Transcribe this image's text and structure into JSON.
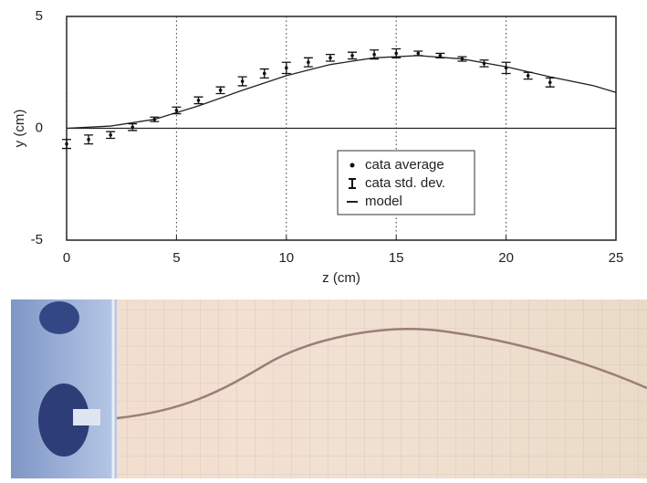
{
  "chart_data": {
    "type": "errorbar",
    "xlabel": "z (cm)",
    "ylabel": "y (cm)",
    "x": [
      0,
      1,
      2,
      3,
      4,
      5,
      6,
      7,
      8,
      9,
      10,
      11,
      12,
      13,
      14,
      15,
      16,
      17,
      18,
      19,
      20,
      21,
      22
    ],
    "series": [
      {
        "name": "cata average",
        "color": "#111111",
        "values": [
          -0.7,
          -0.5,
          -0.3,
          0.05,
          0.4,
          0.8,
          1.25,
          1.7,
          2.1,
          2.45,
          2.7,
          2.95,
          3.15,
          3.25,
          3.3,
          3.35,
          3.35,
          3.25,
          3.1,
          2.9,
          2.7,
          2.35,
          2.05
        ]
      },
      {
        "name": "cata std. dev.",
        "color": "#111111",
        "values": [
          0.2,
          0.2,
          0.15,
          0.15,
          0.1,
          0.15,
          0.15,
          0.15,
          0.2,
          0.2,
          0.25,
          0.2,
          0.15,
          0.15,
          0.2,
          0.2,
          0.1,
          0.1,
          0.1,
          0.15,
          0.25,
          0.15,
          0.2
        ]
      },
      {
        "name": "model",
        "color": "#222222",
        "x": [
          0,
          2,
          4,
          6,
          8,
          10,
          12,
          14,
          16,
          18,
          20,
          22,
          24,
          25
        ],
        "values": [
          0,
          0.1,
          0.4,
          1.0,
          1.7,
          2.35,
          2.85,
          3.15,
          3.25,
          3.1,
          2.75,
          2.3,
          1.9,
          1.6
        ]
      }
    ],
    "xlim": [
      0,
      25
    ],
    "xticks": [
      0,
      5,
      10,
      15,
      20,
      25
    ],
    "ylim": [
      -5,
      5
    ],
    "yticks": [
      -5,
      0,
      5
    ],
    "grid": true,
    "legend": "lower right"
  }
}
